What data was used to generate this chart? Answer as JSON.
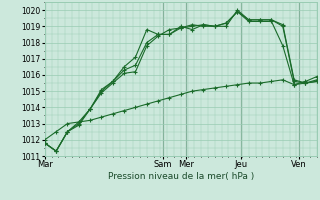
{
  "xlabel": "Pression niveau de la mer( hPa )",
  "ylim": [
    1011,
    1020.5
  ],
  "yticks": [
    1011,
    1012,
    1013,
    1014,
    1015,
    1016,
    1017,
    1018,
    1019,
    1020
  ],
  "background_color": "#cce8dc",
  "grid_color": "#99ccb3",
  "line_color": "#1a6b2a",
  "day_labels": [
    "Mar",
    "Sam",
    "Mer",
    "Jeu",
    "Ven"
  ],
  "day_positions": [
    0.0,
    0.435,
    0.52,
    0.72,
    0.935
  ],
  "vline_positions": [
    0.0,
    0.435,
    0.52,
    0.72,
    0.935
  ],
  "series": [
    [
      1011.8,
      1011.3,
      1012.5,
      1012.9,
      1013.9,
      1015.0,
      1015.6,
      1016.5,
      1017.1,
      1018.8,
      1018.5,
      1018.5,
      1019.0,
      1018.8,
      1019.1,
      1019.0,
      1019.2,
      1019.9,
      1019.3,
      1019.3,
      1019.3,
      1017.8,
      1015.4,
      1015.6,
      1015.9
    ],
    [
      1011.8,
      1011.3,
      1012.5,
      1013.0,
      1013.9,
      1015.1,
      1015.6,
      1016.3,
      1016.6,
      1018.0,
      1018.5,
      1018.5,
      1018.9,
      1019.0,
      1019.1,
      1019.0,
      1019.2,
      1019.9,
      1019.4,
      1019.4,
      1019.4,
      1019.0,
      1015.6,
      1015.5,
      1015.7
    ],
    [
      1011.8,
      1011.3,
      1012.5,
      1013.1,
      1013.9,
      1014.9,
      1015.5,
      1016.1,
      1016.2,
      1017.8,
      1018.4,
      1018.8,
      1018.9,
      1019.1,
      1019.0,
      1019.0,
      1019.0,
      1020.0,
      1019.4,
      1019.4,
      1019.4,
      1019.1,
      1015.7,
      1015.5,
      1015.6
    ],
    [
      1012.0,
      1012.5,
      1013.0,
      1013.1,
      1013.2,
      1013.4,
      1013.6,
      1013.8,
      1014.0,
      1014.2,
      1014.4,
      1014.6,
      1014.8,
      1015.0,
      1015.1,
      1015.2,
      1015.3,
      1015.4,
      1015.5,
      1015.5,
      1015.6,
      1015.7,
      1015.4,
      1015.5,
      1015.6
    ]
  ],
  "total_points": 25,
  "xlim": [
    0.0,
    1.0
  ]
}
